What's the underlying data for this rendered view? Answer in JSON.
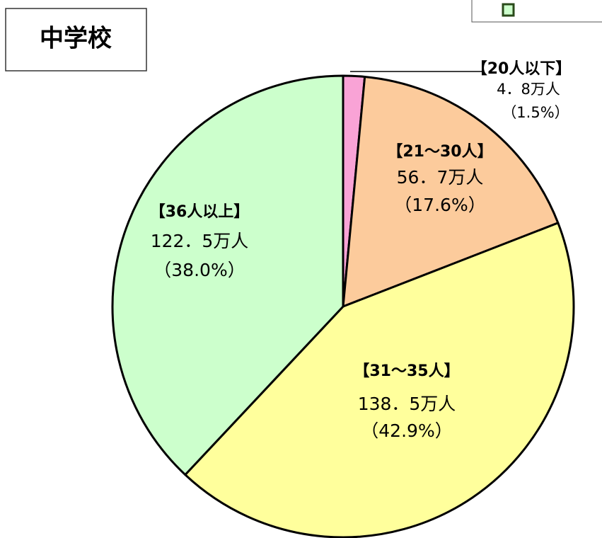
{
  "chart_data": {
    "type": "pie",
    "title": "中学校",
    "categories": [
      "【20人以下】",
      "【21～30人】",
      "【31～35人】",
      "【36人以上】"
    ],
    "count_labels": [
      "4．8万人",
      "56．7万人",
      "138．5万人",
      "122．5万人"
    ],
    "values": [
      1.5,
      17.6,
      42.9,
      38.0
    ],
    "value_labels": [
      "（1.5%）",
      "（17.6%）",
      "（42.9%）",
      "（38.0%）"
    ],
    "colors": [
      "#f9a3d6",
      "#fccb9c",
      "#ffff9c",
      "#ccffcc"
    ]
  }
}
